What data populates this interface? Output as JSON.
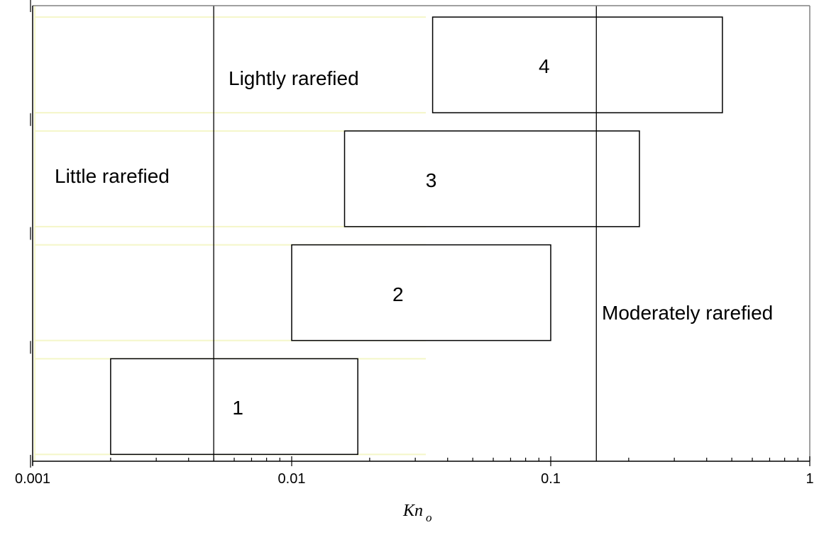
{
  "chart_data": {
    "type": "bar",
    "orientation": "horizontal-range",
    "x_scale": "log",
    "xlim": [
      0.001,
      1
    ],
    "x_tick_labels": [
      "0.001",
      "0.01",
      "0.1",
      "1"
    ],
    "x_tick_values": [
      0.001,
      0.01,
      0.1,
      1
    ],
    "xlabel": "Kn",
    "xlabel_subscript": "o",
    "ylabel": "",
    "title": "",
    "grid": false,
    "legend": "none",
    "ranges": [
      {
        "label": "1",
        "x_start": 0.002,
        "x_end": 0.018
      },
      {
        "label": "2",
        "x_start": 0.01,
        "x_end": 0.1
      },
      {
        "label": "3",
        "x_start": 0.016,
        "x_end": 0.22
      },
      {
        "label": "4",
        "x_start": 0.035,
        "x_end": 0.46
      }
    ],
    "boundaries": [
      0.005,
      0.15
    ],
    "regions": [
      "Little rarefied",
      "Lightly rarefied",
      "Moderately rarefied"
    ]
  },
  "colors": {
    "frame": "#808080",
    "bar_fill": "#ffffff",
    "bar_stroke": "#000000",
    "faint_band": "#f4f6c8"
  }
}
